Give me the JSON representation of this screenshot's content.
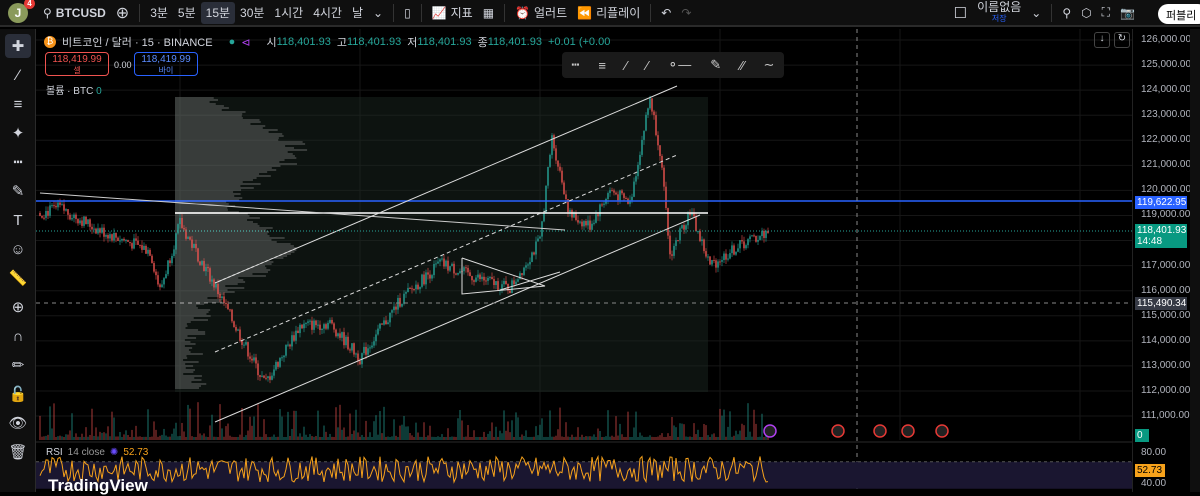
{
  "topbar": {
    "avatar": "J",
    "notif": "4",
    "symbol": "BTCUSD",
    "intervals": [
      "3분",
      "5분",
      "15분",
      "30분",
      "1시간",
      "4시간",
      "날"
    ],
    "active_interval": "15분",
    "indicators": "지표",
    "alert": "얼러트",
    "replay": "리플레이",
    "layout_name": "이름없음",
    "save_label": "저장",
    "publish": "퍼블리"
  },
  "legend": {
    "title": "비트코인 / 달러 · 15 · BINANCE",
    "o_label": "시",
    "o": "118,401.93",
    "h_label": "고",
    "h": "118,401.93",
    "l_label": "저",
    "l": "118,401.93",
    "c_label": "종",
    "c": "118,401.93",
    "change": "+0.01 (+0.00"
  },
  "trade": {
    "sell_price": "118,419.99",
    "sell_label": "셀",
    "spread": "0.00",
    "buy_price": "118,419.99",
    "buy_label": "바이"
  },
  "volume": {
    "label": "볼륨 · BTC",
    "value": "0"
  },
  "price_axis": {
    "ticks": [
      "126,000.00",
      "125,000.00",
      "124,000.00",
      "123,000.00",
      "122,000.00",
      "121,000.00",
      "120,000.00",
      "119,000.00",
      "117,000.00",
      "116,000.00",
      "115,000.00",
      "114,000.00",
      "113,000.00",
      "112,000.00",
      "111,000.00"
    ],
    "blue_line": "119,622.95",
    "last_price": "118,401.93",
    "countdown": "14:48",
    "crosshair": "115,490.34",
    "volume_tag": "0"
  },
  "rsi": {
    "label": "RSI",
    "params": "14 close",
    "value": "52.73",
    "ticks": [
      "80.00",
      "40.00"
    ]
  },
  "brand": "TradingView",
  "colors": {
    "up": "#26a69a",
    "down": "#ef5350",
    "blue": "#2962ff",
    "rsi": "#f7a21b"
  }
}
